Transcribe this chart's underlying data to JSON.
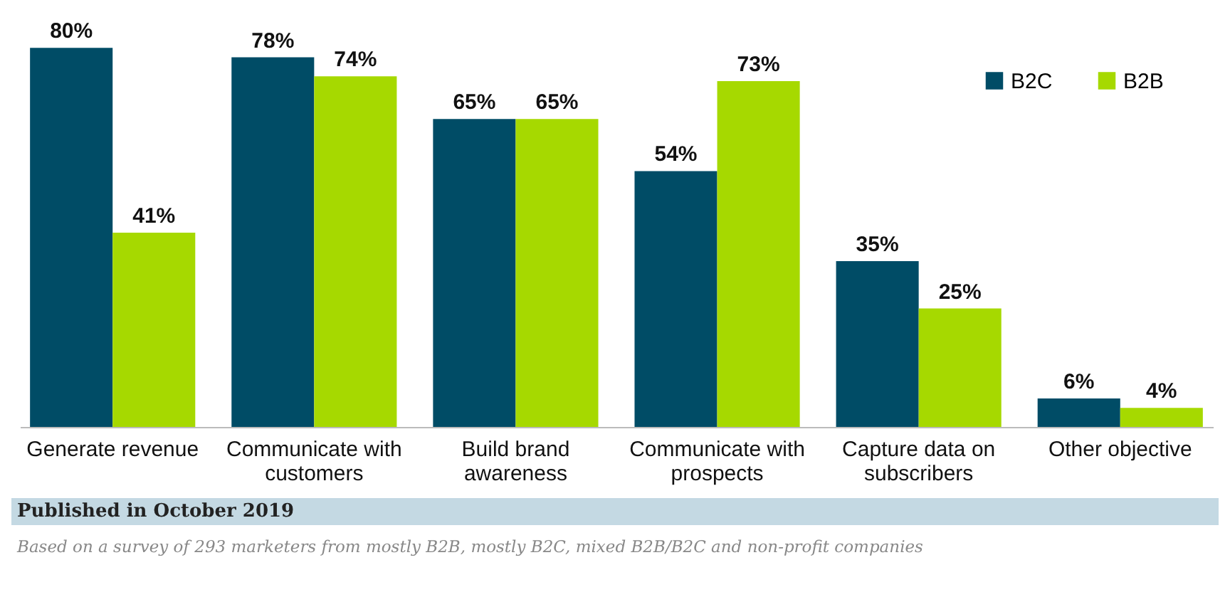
{
  "chart_data": {
    "type": "bar",
    "categories": [
      "Generate revenue",
      "Communicate with customers",
      "Build brand awareness",
      "Communicate with prospects",
      "Capture data on subscribers",
      "Other objective"
    ],
    "series": [
      {
        "name": "B2C",
        "color": "#004c66",
        "values": [
          80,
          78,
          65,
          54,
          35,
          6
        ],
        "value_labels": [
          "80%",
          "78%",
          "65%",
          "54%",
          "35%",
          "6%"
        ]
      },
      {
        "name": "B2B",
        "color": "#a6d900",
        "values": [
          41,
          74,
          65,
          73,
          25,
          4
        ],
        "value_labels": [
          "41%",
          "74%",
          "65%",
          "73%",
          "25%",
          "4%"
        ]
      }
    ],
    "legend": "top right",
    "annotations": [
      "Published in October 2019",
      "Based on a survey of 293 marketers from mostly B2B, mostly B2C, mixed B2B/B2C and non-profit companies"
    ]
  }
}
